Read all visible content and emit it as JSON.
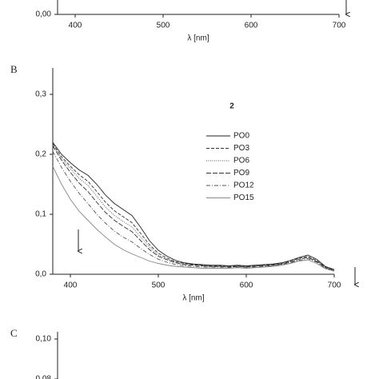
{
  "chart_data": [
    {
      "type": "line",
      "xlabel": "λ [nm]",
      "xlim": [
        380,
        700
      ],
      "xticks": [
        400,
        500,
        600,
        700
      ],
      "yticks": [
        {
          "value": 0,
          "label": "0,00"
        }
      ]
    },
    {
      "type": "line",
      "panel": "B",
      "annotation": "2",
      "xlabel": "λ [nm]",
      "xlim": [
        380,
        700
      ],
      "xticks": [
        400,
        500,
        600,
        700
      ],
      "ylim": [
        0,
        0.344
      ],
      "yticks": [
        {
          "value": 0,
          "label": "0,0"
        },
        {
          "value": 0.1,
          "label": "0,1"
        },
        {
          "value": 0.2,
          "label": "0,2"
        },
        {
          "value": 0.3,
          "label": "0,3"
        }
      ],
      "x": [
        380,
        390,
        400,
        410,
        420,
        430,
        440,
        450,
        460,
        470,
        480,
        490,
        500,
        510,
        520,
        530,
        540,
        550,
        560,
        570,
        580,
        590,
        600,
        610,
        620,
        630,
        640,
        650,
        660,
        670,
        680,
        690,
        700
      ],
      "series": [
        {
          "name": "PO0",
          "color": "#222222",
          "dash": "none",
          "values": [
            0.22,
            0.2,
            0.186,
            0.174,
            0.165,
            0.15,
            0.132,
            0.118,
            0.108,
            0.098,
            0.078,
            0.056,
            0.04,
            0.03,
            0.023,
            0.019,
            0.017,
            0.016,
            0.015,
            0.015,
            0.014,
            0.015,
            0.014,
            0.015,
            0.016,
            0.017,
            0.019,
            0.023,
            0.028,
            0.032,
            0.025,
            0.013,
            0.008
          ]
        },
        {
          "name": "PO3",
          "color": "#333333",
          "dash": "4 2",
          "values": [
            0.218,
            0.196,
            0.18,
            0.166,
            0.155,
            0.138,
            0.12,
            0.106,
            0.096,
            0.086,
            0.068,
            0.049,
            0.035,
            0.027,
            0.021,
            0.018,
            0.016,
            0.015,
            0.014,
            0.014,
            0.013,
            0.014,
            0.013,
            0.014,
            0.015,
            0.016,
            0.018,
            0.022,
            0.027,
            0.03,
            0.023,
            0.012,
            0.007
          ]
        },
        {
          "name": "PO6",
          "color": "#555555",
          "dash": "1 1.5",
          "values": [
            0.216,
            0.193,
            0.176,
            0.16,
            0.148,
            0.13,
            0.112,
            0.098,
            0.088,
            0.079,
            0.062,
            0.045,
            0.032,
            0.025,
            0.02,
            0.017,
            0.015,
            0.014,
            0.013,
            0.013,
            0.013,
            0.013,
            0.013,
            0.014,
            0.015,
            0.016,
            0.018,
            0.021,
            0.026,
            0.029,
            0.022,
            0.011,
            0.007
          ]
        },
        {
          "name": "PO9",
          "color": "#333333",
          "dash": "6 2",
          "values": [
            0.214,
            0.19,
            0.17,
            0.152,
            0.138,
            0.12,
            0.103,
            0.09,
            0.08,
            0.071,
            0.056,
            0.041,
            0.03,
            0.024,
            0.019,
            0.016,
            0.015,
            0.014,
            0.013,
            0.013,
            0.012,
            0.013,
            0.012,
            0.013,
            0.014,
            0.015,
            0.017,
            0.02,
            0.025,
            0.028,
            0.021,
            0.011,
            0.006
          ]
        },
        {
          "name": "PO12",
          "color": "#555555",
          "dash": "5 2 1 2",
          "values": [
            0.205,
            0.178,
            0.155,
            0.135,
            0.118,
            0.1,
            0.085,
            0.072,
            0.062,
            0.054,
            0.043,
            0.033,
            0.025,
            0.02,
            0.016,
            0.014,
            0.013,
            0.012,
            0.012,
            0.012,
            0.011,
            0.012,
            0.011,
            0.012,
            0.013,
            0.014,
            0.016,
            0.019,
            0.023,
            0.026,
            0.02,
            0.01,
            0.006
          ]
        },
        {
          "name": "PO15",
          "color": "#888888",
          "dash": "none",
          "values": [
            0.18,
            0.15,
            0.125,
            0.105,
            0.09,
            0.075,
            0.062,
            0.05,
            0.041,
            0.034,
            0.028,
            0.022,
            0.018,
            0.015,
            0.013,
            0.012,
            0.011,
            0.01,
            0.01,
            0.01,
            0.01,
            0.011,
            0.01,
            0.011,
            0.012,
            0.013,
            0.015,
            0.018,
            0.022,
            0.024,
            0.018,
            0.009,
            0.005
          ]
        }
      ]
    },
    {
      "type": "line",
      "panel": "C",
      "ylim": [
        0.08,
        0.1
      ],
      "yticks": [
        {
          "value": 0.1,
          "label": "0,10"
        },
        {
          "value": 0.08,
          "label": "0,08"
        }
      ]
    }
  ]
}
